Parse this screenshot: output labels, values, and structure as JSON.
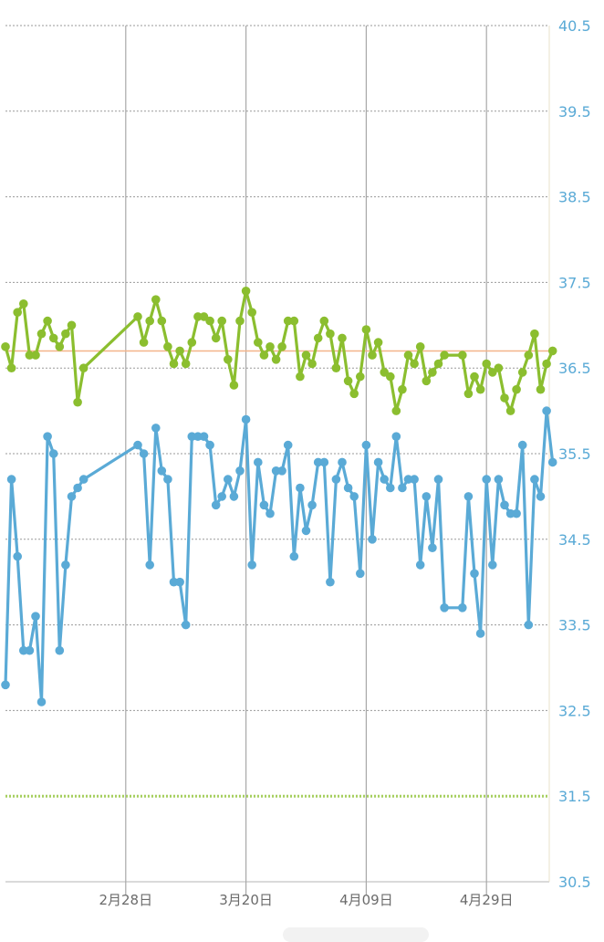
{
  "colors": {
    "green_series": "#8bbe2f",
    "blue_series": "#5aaad6",
    "grid": "#9a9a9a",
    "y_tick_text": "#5aaad6",
    "x_tick_text": "#6b6b6b",
    "orange_line": "#f3b48a",
    "dotted_green": "#a6cf5f"
  },
  "chart_data": {
    "type": "line",
    "y_axis": {
      "ticks": [
        "40.5",
        "39.5",
        "38.5",
        "37.5",
        "36.5",
        "35.5",
        "34.5",
        "33.5",
        "32.5",
        "31.5",
        "30.5"
      ],
      "position": "right"
    },
    "x_axis": {
      "ticks": [
        "2月28日",
        "3月20日",
        "4月09日",
        "4月29日"
      ]
    },
    "reference_lines": [
      {
        "value": 36.7,
        "style": "solid",
        "color": "orange"
      },
      {
        "value": 31.5,
        "style": "dotted",
        "color": "green"
      }
    ],
    "ylim": [
      30.5,
      40.5
    ],
    "grid": true,
    "series": [
      {
        "color": "green",
        "points": [
          [
            0,
            36.75
          ],
          [
            1,
            36.5
          ],
          [
            2,
            37.15
          ],
          [
            3,
            37.25
          ],
          [
            4,
            36.65
          ],
          [
            5,
            36.65
          ],
          [
            6,
            36.9
          ],
          [
            7,
            37.05
          ],
          [
            8,
            36.85
          ],
          [
            9,
            36.75
          ],
          [
            10,
            36.9
          ],
          [
            11,
            37.0
          ],
          [
            12,
            36.1
          ],
          [
            13,
            36.5
          ],
          [
            22,
            37.1
          ],
          [
            23,
            36.8
          ],
          [
            24,
            37.05
          ],
          [
            25,
            37.3
          ],
          [
            26,
            37.05
          ],
          [
            27,
            36.75
          ],
          [
            28,
            36.55
          ],
          [
            29,
            36.7
          ],
          [
            30,
            36.55
          ],
          [
            31,
            36.8
          ],
          [
            32,
            37.1
          ],
          [
            33,
            37.1
          ],
          [
            34,
            37.05
          ],
          [
            35,
            36.85
          ],
          [
            36,
            37.05
          ],
          [
            37,
            36.6
          ],
          [
            38,
            36.3
          ],
          [
            39,
            37.05
          ],
          [
            40,
            37.4
          ],
          [
            41,
            37.15
          ],
          [
            42,
            36.8
          ],
          [
            43,
            36.65
          ],
          [
            44,
            36.75
          ],
          [
            45,
            36.6
          ],
          [
            46,
            36.75
          ],
          [
            47,
            37.05
          ],
          [
            48,
            37.05
          ],
          [
            49,
            36.4
          ],
          [
            50,
            36.65
          ],
          [
            51,
            36.55
          ],
          [
            52,
            36.85
          ],
          [
            53,
            37.05
          ],
          [
            54,
            36.9
          ],
          [
            55,
            36.5
          ],
          [
            56,
            36.85
          ],
          [
            57,
            36.35
          ],
          [
            58,
            36.2
          ],
          [
            59,
            36.4
          ],
          [
            60,
            36.95
          ],
          [
            61,
            36.65
          ],
          [
            62,
            36.8
          ],
          [
            63,
            36.45
          ],
          [
            64,
            36.4
          ],
          [
            65,
            36.0
          ],
          [
            66,
            36.25
          ],
          [
            67,
            36.65
          ],
          [
            68,
            36.55
          ],
          [
            69,
            36.75
          ],
          [
            70,
            36.35
          ],
          [
            71,
            36.45
          ],
          [
            72,
            36.55
          ],
          [
            73,
            36.65
          ],
          [
            76,
            36.65
          ],
          [
            77,
            36.2
          ],
          [
            78,
            36.4
          ],
          [
            79,
            36.25
          ],
          [
            80,
            36.55
          ],
          [
            81,
            36.45
          ],
          [
            82,
            36.5
          ],
          [
            83,
            36.15
          ],
          [
            84,
            36.0
          ],
          [
            85,
            36.25
          ],
          [
            86,
            36.45
          ],
          [
            87,
            36.65
          ],
          [
            88,
            36.9
          ],
          [
            89,
            36.25
          ],
          [
            90,
            36.55
          ],
          [
            91,
            36.7
          ]
        ]
      },
      {
        "color": "blue",
        "points": [
          [
            0,
            32.8
          ],
          [
            1,
            35.2
          ],
          [
            2,
            34.3
          ],
          [
            3,
            33.2
          ],
          [
            4,
            33.2
          ],
          [
            5,
            33.6
          ],
          [
            6,
            32.6
          ],
          [
            7,
            35.7
          ],
          [
            8,
            35.5
          ],
          [
            9,
            33.2
          ],
          [
            10,
            34.2
          ],
          [
            11,
            35.0
          ],
          [
            12,
            35.1
          ],
          [
            13,
            35.2
          ],
          [
            22,
            35.6
          ],
          [
            23,
            35.5
          ],
          [
            24,
            34.2
          ],
          [
            25,
            35.8
          ],
          [
            26,
            35.3
          ],
          [
            27,
            35.2
          ],
          [
            28,
            34.0
          ],
          [
            29,
            34.0
          ],
          [
            30,
            33.5
          ],
          [
            31,
            35.7
          ],
          [
            32,
            35.7
          ],
          [
            33,
            35.7
          ],
          [
            34,
            35.6
          ],
          [
            35,
            34.9
          ],
          [
            36,
            35.0
          ],
          [
            37,
            35.2
          ],
          [
            38,
            35.0
          ],
          [
            39,
            35.3
          ],
          [
            40,
            35.9
          ],
          [
            41,
            34.2
          ],
          [
            42,
            35.4
          ],
          [
            43,
            34.9
          ],
          [
            44,
            34.8
          ],
          [
            45,
            35.3
          ],
          [
            46,
            35.3
          ],
          [
            47,
            35.6
          ],
          [
            48,
            34.3
          ],
          [
            49,
            35.1
          ],
          [
            50,
            34.6
          ],
          [
            51,
            34.9
          ],
          [
            52,
            35.4
          ],
          [
            53,
            35.4
          ],
          [
            54,
            34.0
          ],
          [
            55,
            35.2
          ],
          [
            56,
            35.4
          ],
          [
            57,
            35.1
          ],
          [
            58,
            35.0
          ],
          [
            59,
            34.1
          ],
          [
            60,
            35.6
          ],
          [
            61,
            34.5
          ],
          [
            62,
            35.4
          ],
          [
            63,
            35.2
          ],
          [
            64,
            35.1
          ],
          [
            65,
            35.7
          ],
          [
            66,
            35.1
          ],
          [
            67,
            35.2
          ],
          [
            68,
            35.2
          ],
          [
            69,
            34.2
          ],
          [
            70,
            35.0
          ],
          [
            71,
            34.4
          ],
          [
            72,
            35.2
          ],
          [
            73,
            33.7
          ],
          [
            76,
            33.7
          ],
          [
            77,
            35.0
          ],
          [
            78,
            34.1
          ],
          [
            79,
            33.4
          ],
          [
            80,
            35.2
          ],
          [
            81,
            34.2
          ],
          [
            82,
            35.2
          ],
          [
            83,
            34.9
          ],
          [
            84,
            34.8
          ],
          [
            85,
            34.8
          ],
          [
            86,
            35.6
          ],
          [
            87,
            33.5
          ],
          [
            88,
            35.2
          ],
          [
            89,
            35.0
          ],
          [
            90,
            36.0
          ],
          [
            91,
            35.4
          ]
        ]
      }
    ]
  }
}
